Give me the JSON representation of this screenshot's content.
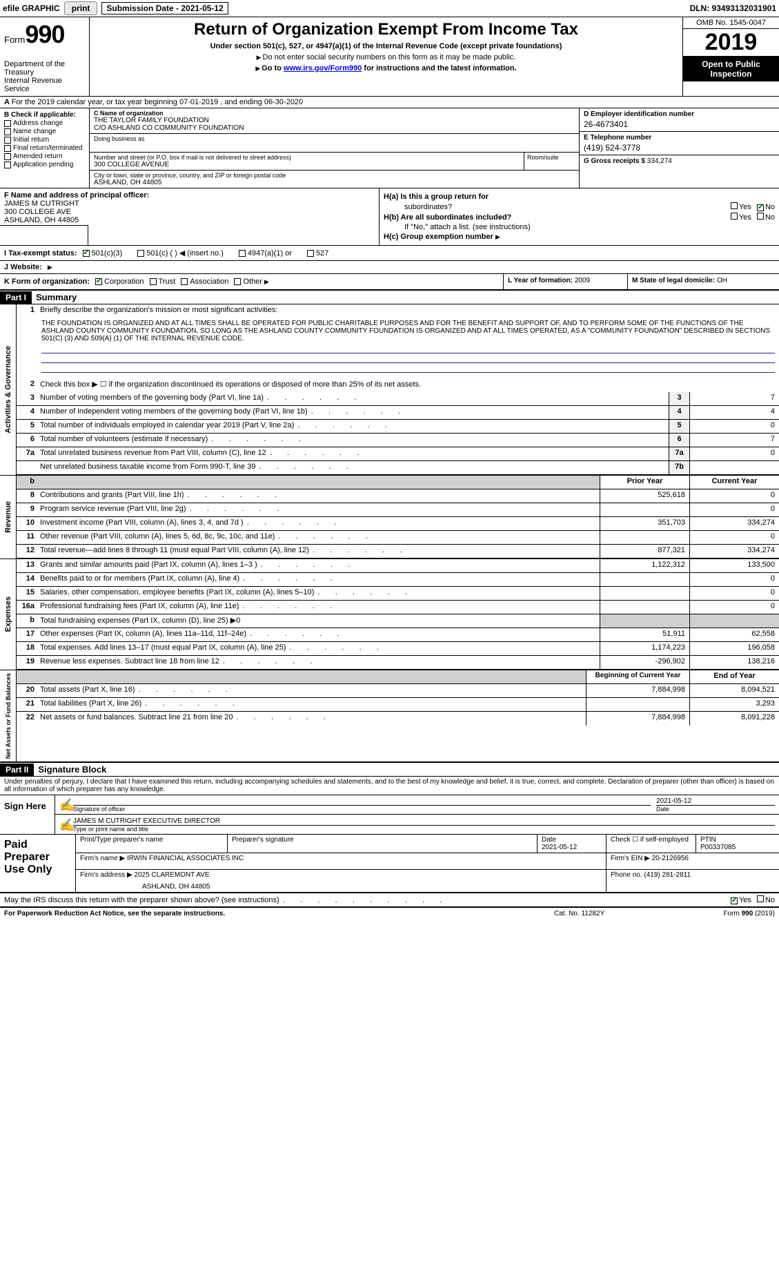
{
  "topbar": {
    "efile_label": "efile GRAPHIC",
    "print_btn": "print",
    "sub_date_label": "Submission Date - 2021-05-12",
    "dln": "DLN: 93493132031901"
  },
  "header": {
    "form_word": "Form",
    "form_num": "990",
    "dept": "Department of the Treasury\nInternal Revenue Service",
    "title": "Return of Organization Exempt From Income Tax",
    "subtitle": "Under section 501(c), 527, or 4947(a)(1) of the Internal Revenue Code (except private foundations)",
    "note1": "Do not enter social security numbers on this form as it may be made public.",
    "note2_pre": "Go to ",
    "note2_link": "www.irs.gov/Form990",
    "note2_post": " for instructions and the latest information.",
    "omb": "OMB No. 1545-0047",
    "year": "2019",
    "inspect": "Open to Public Inspection"
  },
  "row_a": {
    "text": "For the 2019 calendar year, or tax year beginning 07-01-2019    , and ending 06-30-2020"
  },
  "col_b": {
    "header": "B Check if applicable:",
    "items": [
      "Address change",
      "Name change",
      "Initial return",
      "Final return/terminated",
      "Amended return",
      "Application pending"
    ]
  },
  "col_c": {
    "name_label": "C Name of organization",
    "name1": "THE TAYLOR FAMILY FOUNDATION",
    "name2": "C/O ASHLAND CO COMMUNITY FOUNDATION",
    "dba_label": "Doing business as",
    "street_label": "Number and street (or P.O. box if mail is not delivered to street address)",
    "street": "300 COLLEGE AVENUE",
    "room_label": "Room/suite",
    "city_label": "City or town, state or province, country, and ZIP or foreign postal code",
    "city": "ASHLAND, OH  44805"
  },
  "col_d": {
    "ein_label": "D Employer identification number",
    "ein": "26-4673401",
    "phone_label": "E Telephone number",
    "phone": "(419) 524-3778",
    "gross_label": "G Gross receipts $",
    "gross": "334,274"
  },
  "f": {
    "label": "F  Name and address of principal officer:",
    "name": "JAMES M CUTRIGHT",
    "street": "300 COLLEGE AVE",
    "city": "ASHLAND, OH  44805"
  },
  "h": {
    "ha_label": "H(a)  Is this a group return for",
    "ha_label2": "subordinates?",
    "hb_label": "H(b)  Are all subordinates included?",
    "hb_note": "If \"No,\" attach a list. (see instructions)",
    "hc_label": "H(c)  Group exemption number",
    "yes": "Yes",
    "no": "No"
  },
  "status": {
    "i_label": "I  Tax-exempt status:",
    "opt1": "501(c)(3)",
    "opt2": "501(c) (   )",
    "opt2_note": "(insert no.)",
    "opt3": "4947(a)(1) or",
    "opt4": "527",
    "j_label": "J  Website:"
  },
  "k": {
    "label": "K Form of organization:",
    "opts": [
      "Corporation",
      "Trust",
      "Association",
      "Other"
    ],
    "l_label": "L Year of formation:",
    "l_val": "2009",
    "m_label": "M State of legal domicile:",
    "m_val": "OH"
  },
  "part1": {
    "hdr": "Part I",
    "title": "Summary",
    "side_ag": "Activities & Governance",
    "side_rev": "Revenue",
    "side_exp": "Expenses",
    "side_net": "Net Assets or Fund Balances",
    "line1_label": "Briefly describe the organization's mission or most significant activities:",
    "mission": "THE FOUNDATION IS ORGANIZED AND AT ALL TIMES SHALL BE OPERATED FOR PUBLIC CHARITABLE PURPOSES AND FOR THE BENEFIT AND SUPPORT OF, AND TO PERFORM SOME OF THE FUNCTIONS OF THE ASHLAND COUNTY COMMUNITY FOUNDATION, SO LONG AS THE ASHLAND COUNTY COMMUNITY FOUNDATION IS ORGANIZED AND AT ALL TIMES OPERATED, AS A \"COMMUNITY FOUNDATION\" DESCRIBED IN SECTIONS 501(C) (3) AND 509(A) (1) OF THE INTERNAL REVENUE CODE.",
    "lines_ag": [
      {
        "n": "2",
        "t": "Check this box ▶ ☐ if the organization discontinued its operations or disposed of more than 25% of its net assets."
      },
      {
        "n": "3",
        "t": "Number of voting members of the governing body (Part VI, line 1a)",
        "box": "3",
        "v": "7"
      },
      {
        "n": "4",
        "t": "Number of independent voting members of the governing body (Part VI, line 1b)",
        "box": "4",
        "v": "4"
      },
      {
        "n": "5",
        "t": "Total number of individuals employed in calendar year 2019 (Part V, line 2a)",
        "box": "5",
        "v": "0"
      },
      {
        "n": "6",
        "t": "Total number of volunteers (estimate if necessary)",
        "box": "6",
        "v": "7"
      },
      {
        "n": "7a",
        "t": "Total unrelated business revenue from Part VIII, column (C), line 12",
        "box": "7a",
        "v": "0"
      },
      {
        "n": "",
        "t": "Net unrelated business taxable income from Form 990-T, line 39",
        "box": "7b",
        "v": ""
      }
    ],
    "col_prior": "Prior Year",
    "col_curr": "Current Year",
    "lines_rev": [
      {
        "n": "8",
        "t": "Contributions and grants (Part VIII, line 1h)",
        "p": "525,618",
        "c": "0"
      },
      {
        "n": "9",
        "t": "Program service revenue (Part VIII, line 2g)",
        "p": "",
        "c": "0"
      },
      {
        "n": "10",
        "t": "Investment income (Part VIII, column (A), lines 3, 4, and 7d )",
        "p": "351,703",
        "c": "334,274"
      },
      {
        "n": "11",
        "t": "Other revenue (Part VIII, column (A), lines 5, 6d, 8c, 9c, 10c, and 11e)",
        "p": "",
        "c": "0"
      },
      {
        "n": "12",
        "t": "Total revenue—add lines 8 through 11 (must equal Part VIII, column (A), line 12)",
        "p": "877,321",
        "c": "334,274"
      }
    ],
    "lines_exp": [
      {
        "n": "13",
        "t": "Grants and similar amounts paid (Part IX, column (A), lines 1–3 )",
        "p": "1,122,312",
        "c": "133,500"
      },
      {
        "n": "14",
        "t": "Benefits paid to or for members (Part IX, column (A), line 4)",
        "p": "",
        "c": "0"
      },
      {
        "n": "15",
        "t": "Salaries, other compensation, employee benefits (Part IX, column (A), lines 5–10)",
        "p": "",
        "c": "0"
      },
      {
        "n": "16a",
        "t": "Professional fundraising fees (Part IX, column (A), line 11e)",
        "p": "",
        "c": "0"
      },
      {
        "n": "b",
        "t": "Total fundraising expenses (Part IX, column (D), line 25) ▶0",
        "p": "grey",
        "c": "grey"
      },
      {
        "n": "17",
        "t": "Other expenses (Part IX, column (A), lines 11a–11d, 11f–24e)",
        "p": "51,911",
        "c": "62,558"
      },
      {
        "n": "18",
        "t": "Total expenses. Add lines 13–17 (must equal Part IX, column (A), line 25)",
        "p": "1,174,223",
        "c": "196,058"
      },
      {
        "n": "19",
        "t": "Revenue less expenses. Subtract line 18 from line 12",
        "p": "-296,902",
        "c": "138,216"
      }
    ],
    "col_begin": "Beginning of Current Year",
    "col_end": "End of Year",
    "lines_net": [
      {
        "n": "20",
        "t": "Total assets (Part X, line 16)",
        "p": "7,884,998",
        "c": "8,094,521"
      },
      {
        "n": "21",
        "t": "Total liabilities (Part X, line 26)",
        "p": "",
        "c": "3,293"
      },
      {
        "n": "22",
        "t": "Net assets or fund balances. Subtract line 21 from line 20",
        "p": "7,884,998",
        "c": "8,091,228"
      }
    ]
  },
  "part2": {
    "hdr": "Part II",
    "title": "Signature Block",
    "decl": "Under penalties of perjury, I declare that I have examined this return, including accompanying schedules and statements, and to the best of my knowledge and belief, it is true, correct, and complete. Declaration of preparer (other than officer) is based on all information of which preparer has any knowledge.",
    "sign_here": "Sign Here",
    "sig_of_officer": "Signature of officer",
    "sig_date": "2021-05-12",
    "date_label": "Date",
    "officer_name": "JAMES M CUTRIGHT  EXECUTIVE DIRECTOR",
    "type_label": "Type or print name and title",
    "paid": "Paid Preparer Use Only",
    "prep_name_label": "Print/Type preparer's name",
    "prep_sig_label": "Preparer's signature",
    "prep_date": "2021-05-12",
    "prep_check": "Check ☐ if self-employed",
    "ptin_label": "PTIN",
    "ptin": "P00337085",
    "firm_name_label": "Firm's name   ▶",
    "firm_name": "IRWIN FINANCIAL ASSOCIATES INC",
    "firm_ein_label": "Firm's EIN ▶",
    "firm_ein": "20-2126956",
    "firm_addr_label": "Firm's address ▶",
    "firm_addr1": "2025 CLAREMONT AVE",
    "firm_addr2": "ASHLAND, OH  44805",
    "firm_phone_label": "Phone no.",
    "firm_phone": "(419) 281-2811",
    "discuss": "May the IRS discuss this return with the preparer shown above? (see instructions)"
  },
  "footer": {
    "left": "For Paperwork Reduction Act Notice, see the separate instructions.",
    "mid": "Cat. No. 11282Y",
    "right_pre": "Form ",
    "right_bold": "990",
    "right_post": " (2019)"
  }
}
